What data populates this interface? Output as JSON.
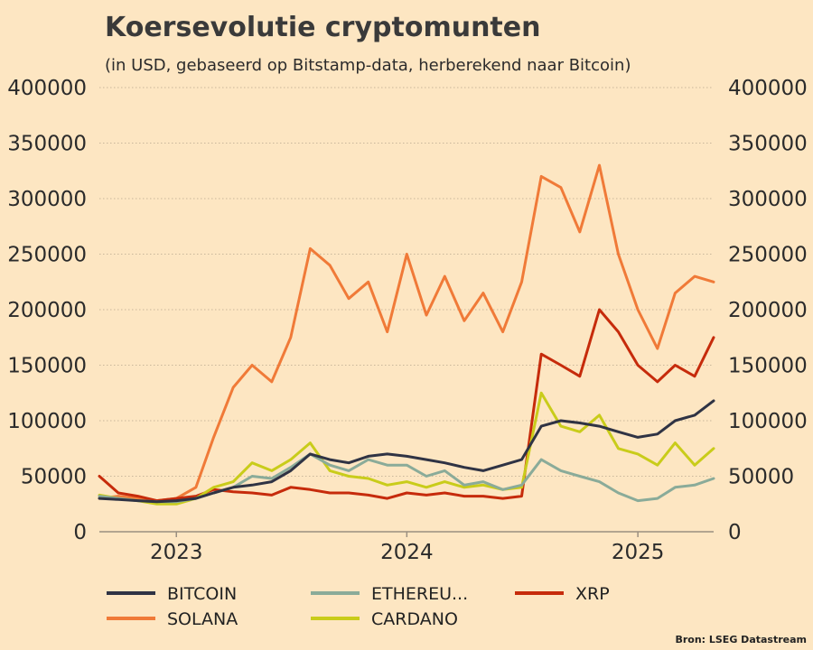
{
  "colors": {
    "background": "#fde6c2",
    "grid": "#c9b79b",
    "axis": "#9a8f80",
    "BITCOIN": "#2f3344",
    "ETHEREUM": "#8aab99",
    "XRP": "#c62b0b",
    "SOLANA": "#f07a38",
    "CARDANO": "#c9cc1a"
  },
  "chart_data": {
    "type": "line",
    "title": "Koersevolutie cryptomunten",
    "subtitle": "(in USD, gebaseerd op Bitstamp-data, herberekend naar Bitcoin)",
    "source": "Bron: LSEG Datastream",
    "xlabel": "",
    "ylabel": "",
    "ylim": [
      0,
      400000
    ],
    "xlim": [
      "2022-09-01",
      "2025-05-01"
    ],
    "yticks": [
      "0",
      "50000",
      "100000",
      "150000",
      "200000",
      "250000",
      "300000",
      "350000",
      "400000"
    ],
    "xticks": [
      {
        "label": "2023",
        "date": "2023-01-01"
      },
      {
        "label": "2024",
        "date": "2024-01-01"
      },
      {
        "label": "2025",
        "date": "2025-01-01"
      }
    ],
    "grid": true,
    "legend_position": "bottom",
    "legend": [
      "BITCOIN",
      "SOLANA",
      "ETHEREU...",
      "CARDANO",
      "XRP"
    ],
    "x": [
      "2022-09-01",
      "2022-10-01",
      "2022-11-01",
      "2022-12-01",
      "2023-01-01",
      "2023-02-01",
      "2023-03-01",
      "2023-04-01",
      "2023-05-01",
      "2023-06-01",
      "2023-07-01",
      "2023-08-01",
      "2023-09-01",
      "2023-10-01",
      "2023-11-01",
      "2023-12-01",
      "2024-01-01",
      "2024-02-01",
      "2024-03-01",
      "2024-04-01",
      "2024-05-01",
      "2024-06-01",
      "2024-07-01",
      "2024-08-01",
      "2024-09-01",
      "2024-10-01",
      "2024-11-01",
      "2024-12-01",
      "2025-01-01",
      "2025-02-01",
      "2025-03-01",
      "2025-04-01",
      "2025-05-01"
    ],
    "series": [
      {
        "name": "SOLANA",
        "values": [
          30000,
          32000,
          30000,
          28000,
          30000,
          40000,
          85000,
          130000,
          150000,
          135000,
          175000,
          255000,
          240000,
          210000,
          225000,
          180000,
          250000,
          195000,
          230000,
          190000,
          215000,
          180000,
          225000,
          320000,
          310000,
          270000,
          330000,
          250000,
          200000,
          165000,
          215000,
          230000,
          225000
        ]
      },
      {
        "name": "XRP",
        "values": [
          50000,
          35000,
          32000,
          28000,
          30000,
          32000,
          38000,
          36000,
          35000,
          33000,
          40000,
          38000,
          35000,
          35000,
          33000,
          30000,
          35000,
          33000,
          35000,
          32000,
          32000,
          30000,
          32000,
          160000,
          150000,
          140000,
          200000,
          180000,
          150000,
          135000,
          150000,
          140000,
          175000
        ]
      },
      {
        "name": "CARDANO",
        "values": [
          33000,
          30000,
          28000,
          25000,
          25000,
          30000,
          40000,
          45000,
          62000,
          55000,
          65000,
          80000,
          55000,
          50000,
          48000,
          42000,
          45000,
          40000,
          45000,
          40000,
          42000,
          38000,
          40000,
          125000,
          95000,
          90000,
          105000,
          75000,
          70000,
          60000,
          80000,
          60000,
          75000
        ]
      },
      {
        "name": "ETHEREUM",
        "values": [
          32000,
          30000,
          28000,
          27000,
          27000,
          30000,
          35000,
          40000,
          50000,
          48000,
          58000,
          70000,
          60000,
          55000,
          65000,
          60000,
          60000,
          50000,
          55000,
          42000,
          45000,
          38000,
          42000,
          65000,
          55000,
          50000,
          45000,
          35000,
          28000,
          30000,
          40000,
          42000,
          48000
        ]
      },
      {
        "name": "BITCOIN",
        "values": [
          30000,
          29000,
          28000,
          27000,
          28000,
          30000,
          35000,
          40000,
          42000,
          45000,
          55000,
          70000,
          65000,
          62000,
          68000,
          70000,
          68000,
          65000,
          62000,
          58000,
          55000,
          60000,
          65000,
          95000,
          100000,
          98000,
          95000,
          90000,
          85000,
          88000,
          100000,
          105000,
          118000
        ]
      }
    ]
  },
  "legend_items": [
    {
      "key": "BITCOIN",
      "label": "BITCOIN"
    },
    {
      "key": "SOLANA",
      "label": "SOLANA"
    },
    {
      "key": "ETHEREUM",
      "label": "ETHEREU..."
    },
    {
      "key": "CARDANO",
      "label": "CARDANO"
    },
    {
      "key": "XRP",
      "label": "XRP"
    }
  ]
}
